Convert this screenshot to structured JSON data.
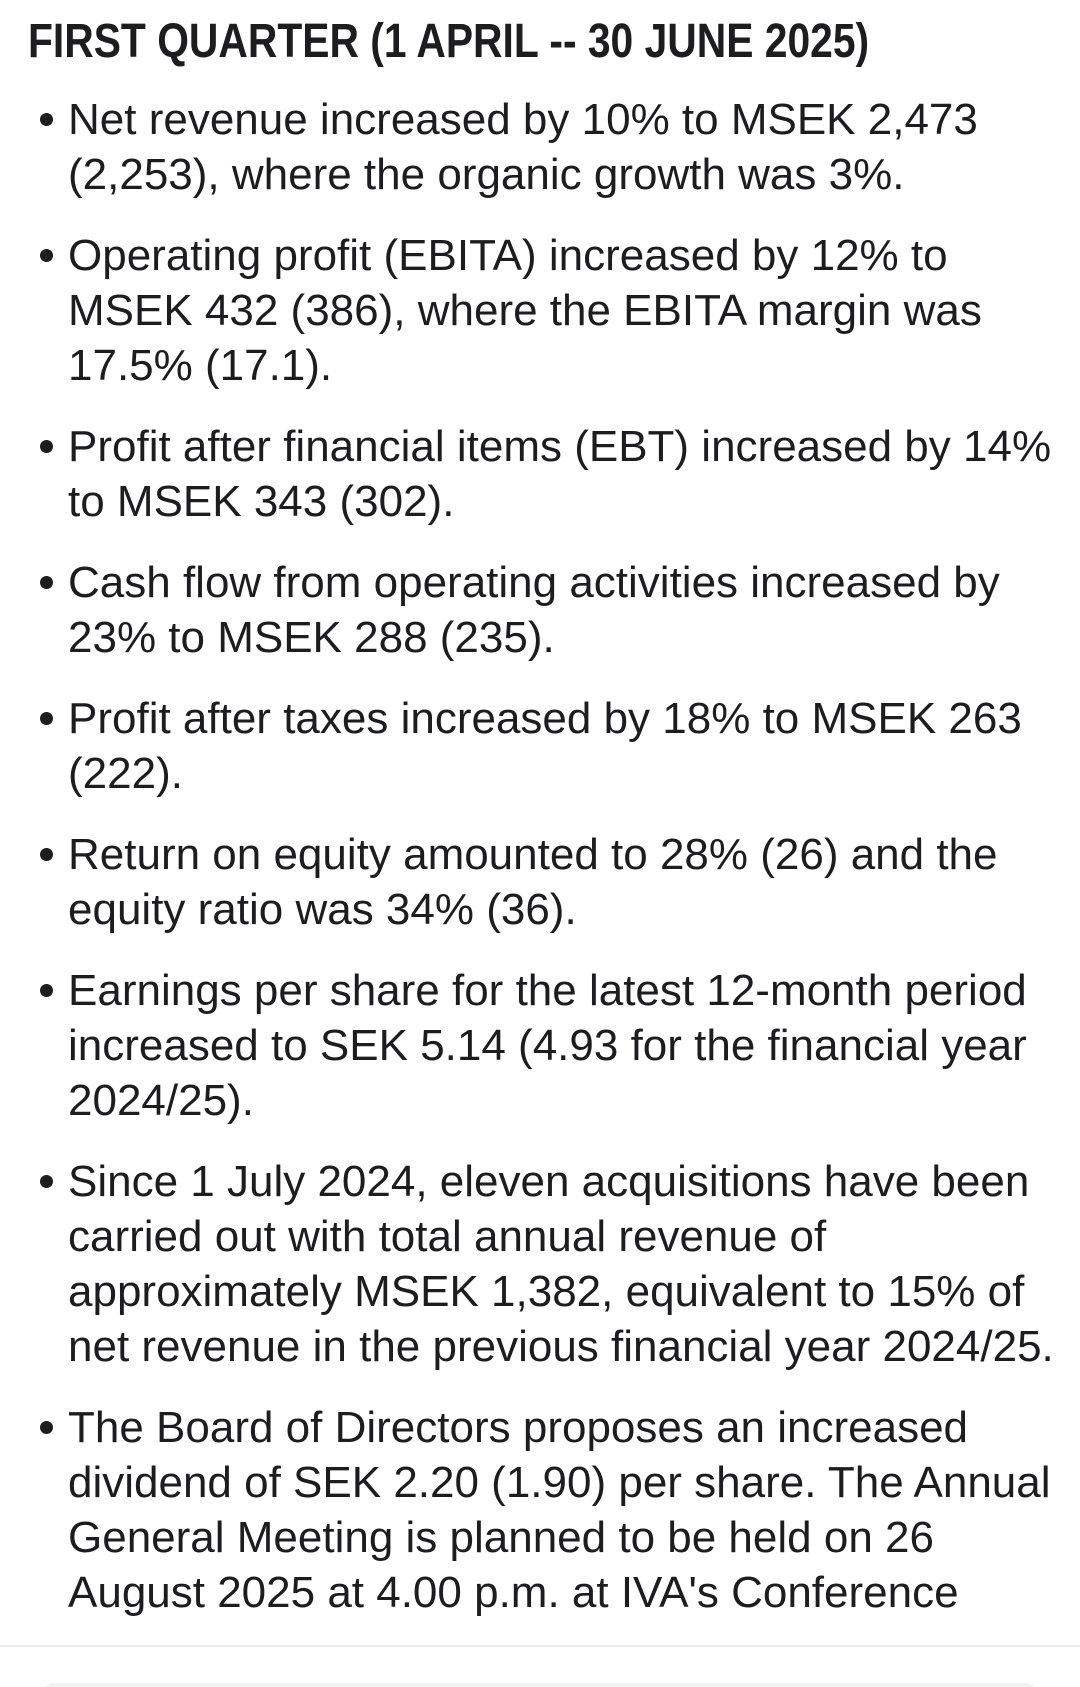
{
  "page": {
    "background": "#ffffff",
    "text_color": "#1d1d1f",
    "divider_color": "#ececec",
    "sheet_color": "#f3f3f4"
  },
  "report": {
    "title": "FIRST QUARTER (1 APRIL -- 30 JUNE 2025)",
    "bullets": [
      "Net revenue increased by 10% to MSEK 2,473 (2,253), where the organic growth was 3%.",
      "Operating profit (EBITA) increased by 12% to MSEK 432 (386), where the EBITA margin was 17.5% (17.1).",
      "Profit after financial items (EBT) increased by 14% to MSEK 343 (302).",
      "Cash flow from operating activities increased by 23% to MSEK 288 (235).",
      "Profit after taxes increased by 18% to MSEK 263 (222).",
      "Return on equity amounted to 28% (26) and the equity ratio was 34% (36).",
      "Earnings per share for the latest 12-month period increased to SEK 5.14 (4.93 for the financial year 2024/25).",
      "Since 1 July 2024, eleven acquisitions have been carried out with total annual revenue of approximately MSEK 1,382, equivalent to 15% of net revenue in the previous financial year 2024/25.",
      "The Board of Directors proposes an increased dividend of SEK 2.20 (1.90) per share. The Annual General Meeting is planned to be held on 26 August 2025 at 4.00 p.m. at IVA's Conference"
    ]
  }
}
